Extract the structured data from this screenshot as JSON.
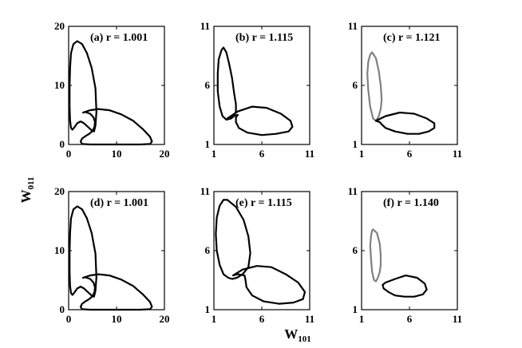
{
  "figure": {
    "ylabel": "W",
    "ylabel_sub": "011",
    "xlabel": "W",
    "xlabel_sub": "101"
  },
  "colors": {
    "black": "#000000",
    "gray": "#808080"
  },
  "chart_data": [
    {
      "type": "line",
      "panel": "(a)",
      "label": "(a) r = 1.001",
      "xlim": [
        0,
        20
      ],
      "ylim": [
        0,
        20
      ],
      "xticks": [
        "0",
        "10",
        "20"
      ],
      "yticks": [
        "0",
        "10",
        "20"
      ],
      "grid": false,
      "series": [
        {
          "color": "#000000",
          "x": [
            5.8,
            5.6,
            4.8,
            3.8,
            2.8,
            1.8,
            1.0,
            0.5,
            0.3,
            0.2,
            0.2,
            0.3,
            0.5,
            0.8,
            1.2,
            1.8,
            2.5,
            3.2,
            4.0,
            4.8,
            5.3,
            5.6,
            5.8
          ],
          "y": [
            5.5,
            9.5,
            13.0,
            15.5,
            17.0,
            17.5,
            17.0,
            15.5,
            13.0,
            10.0,
            6.5,
            4.0,
            2.8,
            2.5,
            2.9,
            3.6,
            3.9,
            3.6,
            3.0,
            2.4,
            2.2,
            3.2,
            5.5
          ]
        },
        {
          "color": "#000000",
          "x": [
            3.0,
            4.5,
            6.2,
            8.5,
            11.0,
            13.5,
            15.5,
            17.0,
            17.4,
            17.0,
            15.0,
            12.0,
            8.0,
            4.5,
            2.8,
            2.5,
            2.8,
            3.5,
            4.3,
            5.0,
            5.4,
            5.5,
            5.2,
            4.5,
            3.5,
            3.0
          ],
          "y": [
            5.4,
            5.8,
            6.0,
            5.8,
            5.1,
            4.0,
            2.6,
            1.3,
            0.5,
            0.1,
            0.0,
            0.0,
            0.0,
            0.0,
            0.1,
            0.5,
            1.0,
            1.4,
            1.8,
            2.3,
            3.0,
            3.8,
            4.6,
            5.2,
            5.5,
            5.4
          ]
        }
      ]
    },
    {
      "type": "line",
      "panel": "(b)",
      "label": "(b) r = 1.115",
      "xlim": [
        1,
        11
      ],
      "ylim": [
        1,
        11
      ],
      "xticks": [
        "1",
        "6",
        "11"
      ],
      "yticks": [
        "1",
        "6",
        "11"
      ],
      "grid": false,
      "series": [
        {
          "color": "#000000",
          "x": [
            2.0,
            2.3,
            2.6,
            2.9,
            3.1,
            3.3,
            3.3,
            3.1,
            2.8,
            2.3,
            1.9,
            1.6,
            1.4,
            1.4,
            1.5,
            1.8,
            2.0
          ],
          "y": [
            9.2,
            8.8,
            7.8,
            6.6,
            5.4,
            4.4,
            3.8,
            3.4,
            3.2,
            3.1,
            3.4,
            4.2,
            5.5,
            7.0,
            8.2,
            9.0,
            9.2
          ]
        },
        {
          "color": "#000000",
          "x": [
            2.4,
            3.5,
            5.0,
            6.5,
            8.0,
            9.0,
            9.2,
            8.8,
            7.5,
            6.0,
            4.5,
            3.6,
            3.3,
            3.3,
            3.5,
            3.0,
            2.4
          ],
          "y": [
            3.2,
            3.8,
            4.2,
            4.1,
            3.6,
            3.0,
            2.5,
            2.1,
            1.9,
            1.8,
            2.0,
            2.4,
            2.9,
            3.3,
            3.5,
            3.4,
            3.2
          ]
        }
      ]
    },
    {
      "type": "line",
      "panel": "(c)",
      "label": "(c) r = 1.121",
      "xlim": [
        1,
        11
      ],
      "ylim": [
        1,
        11
      ],
      "xticks": [
        "1",
        "6",
        "11"
      ],
      "yticks": [
        "1",
        "6",
        "11"
      ],
      "grid": false,
      "series": [
        {
          "color": "#808080",
          "x": [
            2.1,
            2.5,
            2.8,
            3.0,
            3.1,
            3.0,
            2.8,
            2.5,
            2.2,
            1.9,
            1.7,
            1.6,
            1.7,
            1.9,
            2.1
          ],
          "y": [
            8.8,
            8.3,
            7.2,
            6.0,
            4.8,
            4.0,
            3.4,
            3.0,
            3.2,
            4.2,
            5.6,
            7.0,
            8.0,
            8.6,
            8.8
          ]
        },
        {
          "color": "#000000",
          "x": [
            2.5,
            3.5,
            5.0,
            6.5,
            7.8,
            8.6,
            8.6,
            8.0,
            7.0,
            5.8,
            4.5,
            3.5,
            3.1,
            2.9,
            2.5
          ],
          "y": [
            3.0,
            3.4,
            3.7,
            3.6,
            3.2,
            2.8,
            2.4,
            2.1,
            1.9,
            1.9,
            2.1,
            2.4,
            2.7,
            2.9,
            3.0
          ]
        }
      ]
    },
    {
      "type": "line",
      "panel": "(d)",
      "label": "(d) r = 1.001",
      "xlim": [
        0,
        20
      ],
      "ylim": [
        0,
        20
      ],
      "xticks": [
        "0",
        "10",
        "20"
      ],
      "yticks": [
        "0",
        "10",
        "20"
      ],
      "grid": false,
      "series": [
        {
          "color": "#000000",
          "x": [
            5.8,
            5.6,
            4.8,
            3.8,
            2.8,
            1.8,
            1.0,
            0.5,
            0.3,
            0.2,
            0.2,
            0.3,
            0.5,
            0.8,
            1.2,
            1.8,
            2.5,
            3.2,
            4.0,
            4.8,
            5.3,
            5.6,
            5.8
          ],
          "y": [
            5.5,
            9.5,
            13.0,
            15.5,
            17.0,
            17.5,
            17.0,
            15.5,
            13.0,
            10.0,
            6.5,
            4.0,
            2.8,
            2.5,
            2.9,
            3.6,
            3.9,
            3.6,
            3.0,
            2.4,
            2.2,
            3.2,
            5.5
          ]
        },
        {
          "color": "#000000",
          "x": [
            3.0,
            4.5,
            6.2,
            8.5,
            11.0,
            13.5,
            15.5,
            17.0,
            17.4,
            17.0,
            15.0,
            12.0,
            8.0,
            4.5,
            2.8,
            2.5,
            2.8,
            3.5,
            4.3,
            5.0,
            5.4,
            5.5,
            5.2,
            4.5,
            3.5,
            3.0
          ],
          "y": [
            5.4,
            5.8,
            6.0,
            5.8,
            5.1,
            4.0,
            2.6,
            1.3,
            0.5,
            0.1,
            0.0,
            0.0,
            0.0,
            0.0,
            0.1,
            0.5,
            1.0,
            1.4,
            1.8,
            2.3,
            3.0,
            3.8,
            4.6,
            5.2,
            5.5,
            5.4
          ]
        }
      ]
    },
    {
      "type": "line",
      "panel": "(e)",
      "label": "(e) r = 1.115",
      "xlim": [
        1,
        11
      ],
      "ylim": [
        1,
        11
      ],
      "xticks": [
        "1",
        "6",
        "11"
      ],
      "yticks": [
        "1",
        "6",
        "11"
      ],
      "grid": false,
      "series": [
        {
          "color": "#000000",
          "x": [
            2.4,
            3.3,
            4.1,
            4.6,
            4.8,
            4.6,
            4.0,
            3.4,
            2.9,
            2.5,
            2.0,
            1.6,
            1.3,
            1.2,
            1.3,
            1.6,
            2.0,
            2.4
          ],
          "y": [
            10.3,
            9.7,
            8.6,
            7.2,
            5.8,
            4.6,
            4.0,
            3.7,
            3.6,
            3.7,
            4.0,
            4.8,
            6.0,
            7.4,
            8.8,
            9.8,
            10.3,
            10.3
          ]
        },
        {
          "color": "#000000",
          "x": [
            3.0,
            4.0,
            5.5,
            7.0,
            8.5,
            9.8,
            10.5,
            10.3,
            9.3,
            7.8,
            6.2,
            5.0,
            4.4,
            4.3,
            4.2,
            3.5,
            3.0
          ],
          "y": [
            3.9,
            4.4,
            4.7,
            4.6,
            4.0,
            3.3,
            2.5,
            1.9,
            1.6,
            1.5,
            1.7,
            2.2,
            2.9,
            3.5,
            3.9,
            4.0,
            3.9
          ]
        }
      ]
    },
    {
      "type": "line",
      "panel": "(f)",
      "label": "(f) r = 1.140",
      "xlim": [
        1,
        11
      ],
      "ylim": [
        1,
        11
      ],
      "xticks": [
        "1",
        "6",
        "11"
      ],
      "yticks": [
        "1",
        "6",
        "11"
      ],
      "grid": false,
      "series": [
        {
          "color": "#808080",
          "x": [
            2.2,
            2.6,
            2.9,
            3.0,
            3.0,
            2.9,
            2.7,
            2.5,
            2.3,
            2.1,
            2.0,
            1.9,
            2.0,
            2.1,
            2.2
          ],
          "y": [
            7.8,
            7.5,
            6.6,
            5.6,
            4.8,
            4.2,
            3.7,
            3.4,
            3.5,
            4.2,
            5.2,
            6.4,
            7.3,
            7.7,
            7.8
          ]
        },
        {
          "color": "#000000",
          "x": [
            3.5,
            4.5,
            5.6,
            6.8,
            7.6,
            7.8,
            7.4,
            6.5,
            5.5,
            4.5,
            3.8,
            3.3,
            3.2,
            3.5
          ],
          "y": [
            3.3,
            3.6,
            3.9,
            3.7,
            3.2,
            2.7,
            2.3,
            2.1,
            2.1,
            2.2,
            2.5,
            2.8,
            3.1,
            3.3
          ]
        }
      ]
    }
  ]
}
